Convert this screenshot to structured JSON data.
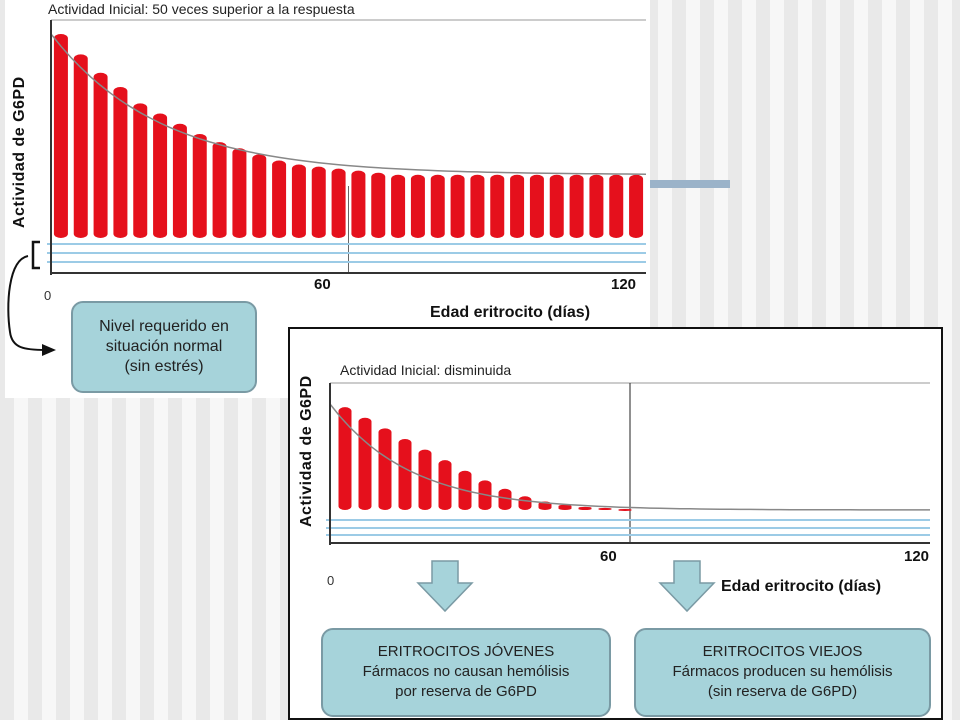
{
  "top_chart": {
    "title": "Actividad Inicial: 50 veces superior a la respuesta",
    "ylabel": "Actividad de G6PD",
    "xlabel": "Edad eritrocito (días)",
    "x_ticks": [
      "0",
      "60",
      "120"
    ],
    "bar_color": "#e5101c",
    "normal_level_box": [
      "Nivel requerido en",
      "situación normal",
      "(sin estrés)"
    ]
  },
  "bottom_chart": {
    "title": "Actividad Inicial: disminuida",
    "ylabel": "Actividad de G6PD",
    "xlabel": "Edad eritrocito (días)",
    "x_ticks": [
      "0",
      "60",
      "120"
    ],
    "bar_color": "#e5101c"
  },
  "young_box": [
    "ERITROCITOS JÓVENES",
    "Fármacos no causan hemólisis",
    "por reserva de G6PD"
  ],
  "old_box": [
    "ERITROCITOS VIEJOS",
    "Fármacos producen su hemólisis",
    "(sin reserva de G6PD)"
  ],
  "chart_data": [
    {
      "type": "bar",
      "title": "Actividad Inicial: 50 veces superior a la respuesta",
      "xlabel": "Edad eritrocito (días)",
      "ylabel": "Actividad de G6PD",
      "xlim": [
        0,
        120
      ],
      "x": [
        2,
        6,
        10,
        14,
        18,
        22,
        26,
        30,
        34,
        38,
        42,
        46,
        50,
        54,
        58,
        62,
        66,
        70,
        74,
        78,
        82,
        86,
        90,
        94,
        98,
        102,
        106,
        110,
        114,
        118
      ],
      "values": [
        100,
        90,
        81,
        74,
        66,
        61,
        56,
        51,
        47,
        44,
        41,
        38,
        36,
        35,
        34,
        33,
        32,
        31,
        31,
        31,
        31,
        31,
        31,
        31,
        31,
        31,
        31,
        31,
        31,
        31
      ]
    },
    {
      "type": "bar",
      "title": "Actividad Inicial: disminuida",
      "xlabel": "Edad eritrocito (días)",
      "ylabel": "Actividad de G6PD",
      "xlim": [
        0,
        120
      ],
      "x": [
        3,
        7,
        11,
        15,
        19,
        23,
        27,
        31,
        35,
        39,
        43,
        47,
        51,
        55,
        59
      ],
      "values": [
        97,
        87,
        77,
        67,
        57,
        47,
        37,
        28,
        20,
        13,
        8,
        5,
        3,
        2,
        1
      ]
    }
  ]
}
